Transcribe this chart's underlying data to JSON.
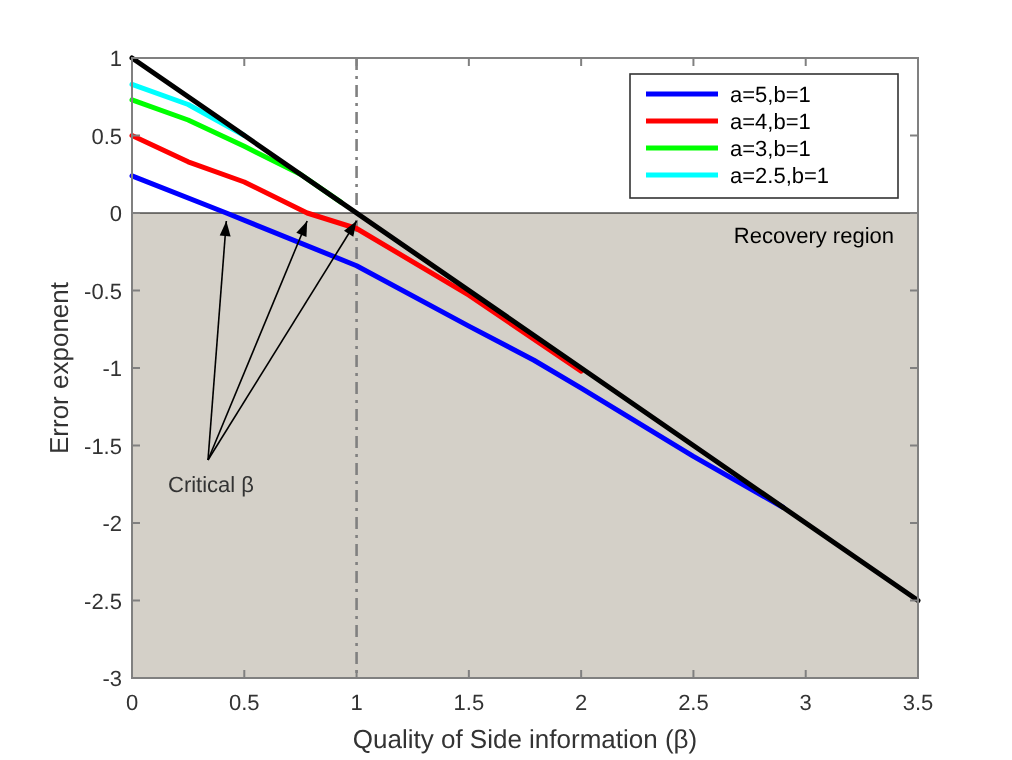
{
  "chart_data": {
    "type": "line",
    "xlabel": "Quality of Side information (β)",
    "ylabel": "Error exponent",
    "xlim": [
      0,
      3.5
    ],
    "ylim": [
      -3,
      1
    ],
    "xticks": [
      0,
      0.5,
      1,
      1.5,
      2,
      2.5,
      3,
      3.5
    ],
    "yticks": [
      -3,
      -2.5,
      -2,
      -1.5,
      -1,
      -0.5,
      0,
      0.5,
      1
    ],
    "grid": false,
    "legend": "top right",
    "line_style": "solid",
    "series": [
      {
        "name": "a=5,b=1",
        "color": "#0000ff",
        "x": [
          0,
          0.42,
          1,
          1.5,
          1.79,
          2,
          2.5,
          2.9
        ],
        "values": [
          0.24,
          0,
          -0.34,
          -0.73,
          -0.95,
          -1.13,
          -1.57,
          -1.9
        ]
      },
      {
        "name": "a=4,b=1",
        "color": "#ff0000",
        "x": [
          0,
          0.25,
          0.5,
          0.78,
          1,
          1.5,
          2
        ],
        "values": [
          0.5,
          0.33,
          0.2,
          0,
          -0.1,
          -0.53,
          -1.02
        ]
      },
      {
        "name": "a=3,b=1",
        "color": "#00ff00",
        "x": [
          0,
          0.25,
          0.5,
          0.75,
          0.93
        ],
        "values": [
          0.73,
          0.6,
          0.43,
          0.25,
          0.07
        ]
      },
      {
        "name": "a=2.5,b=1",
        "color": "#00ffff",
        "x": [
          0,
          0.25,
          0.5
        ],
        "values": [
          0.83,
          0.7,
          0.5
        ]
      },
      {
        "color": "#000000",
        "x": [
          0,
          3.5
        ],
        "values": [
          1,
          -2.5
        ]
      }
    ],
    "ref_lines": [
      {
        "axis": "x",
        "value": 1,
        "color": "#808080",
        "line_style": "dashdot"
      }
    ],
    "bands": [
      {
        "axis": "y",
        "from": -3,
        "to": 0,
        "label": "Recovery region",
        "color": "#d4d0c8"
      }
    ],
    "annotations": [
      {
        "text": "Critical β",
        "x": 0.42,
        "y": 0
      }
    ]
  }
}
